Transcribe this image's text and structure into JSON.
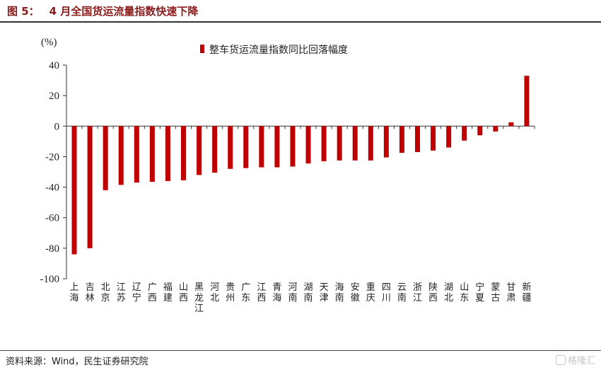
{
  "figure": {
    "number": "图 5：",
    "title": "4 月全国货运流量指数快速下降"
  },
  "footer": {
    "source": "资料来源：Wind，民生证券研究院",
    "watermark": "格隆汇"
  },
  "colors": {
    "bar": "#c00000",
    "title": "#8b1a1a",
    "axis": "#333333"
  },
  "chart_data": {
    "type": "bar",
    "ylabel": "(%)",
    "ylim": [
      -100,
      40
    ],
    "yticks": [
      40,
      20,
      0,
      -20,
      -40,
      -60,
      -80,
      -100
    ],
    "categories": [
      "上海",
      "吉林",
      "北京",
      "江苏",
      "辽宁",
      "广西",
      "福建",
      "山西",
      "黑龙江",
      "河北",
      "贵州",
      "广东",
      "江西",
      "青海",
      "河南",
      "湖南",
      "天津",
      "海南",
      "安徽",
      "重庆",
      "四川",
      "云南",
      "浙江",
      "陕西",
      "湖北",
      "山东",
      "宁夏",
      "蒙古",
      "甘肃",
      "新疆"
    ],
    "series": [
      {
        "name": "整车货运流量指数同比回落幅度",
        "values": [
          -84,
          -80,
          -42,
          -38.5,
          -37,
          -36.5,
          -36,
          -35.5,
          -32,
          -30.5,
          -28,
          -27.5,
          -27,
          -27,
          -26.5,
          -24.5,
          -23,
          -22.5,
          -22.5,
          -22.5,
          -20.5,
          -17.5,
          -17,
          -16,
          -14,
          -9.5,
          -6,
          -3.5,
          2.5,
          33
        ]
      }
    ],
    "legend_position": "top-center",
    "grid": false
  }
}
